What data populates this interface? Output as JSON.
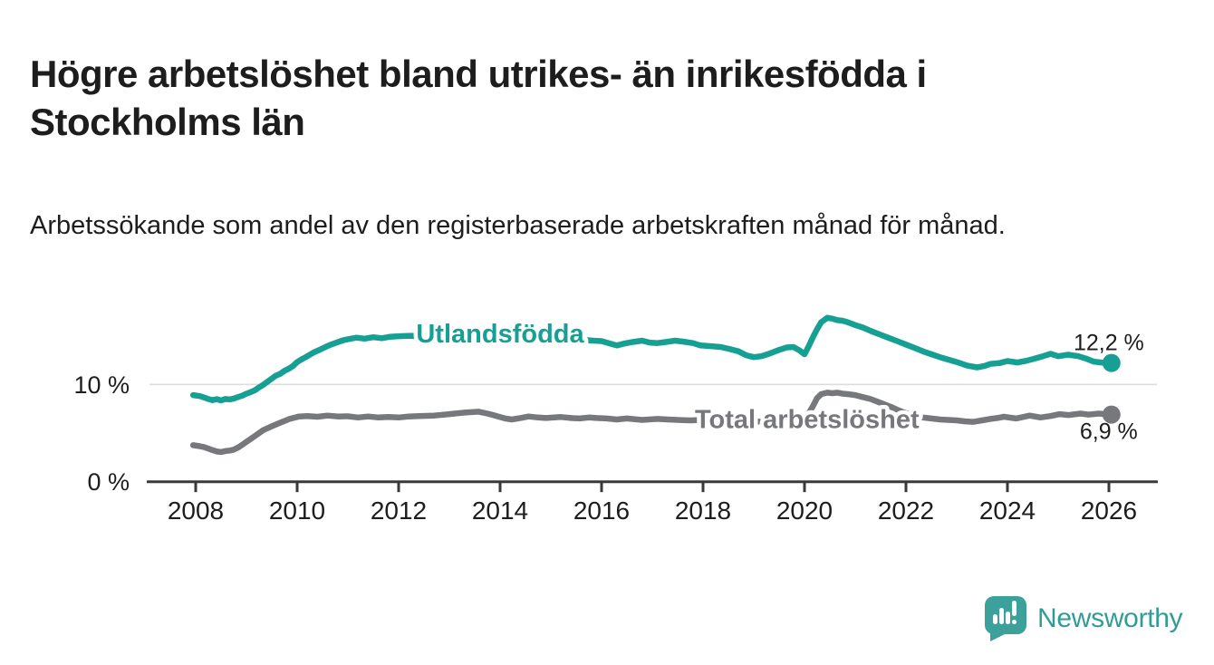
{
  "chart_data": {
    "type": "line",
    "title": "Högre arbetslöshet bland utrikes- än inrikesfödda i Stockholms län",
    "subtitle": "Arbetssökande som andel av den registerbaserade arbetskraften månad för månad.",
    "legend_position": "inline-labels-on-lines",
    "grid": "horizontal-10pct-only",
    "x_axis": {
      "tick_years": [
        2008,
        2010,
        2012,
        2014,
        2016,
        2018,
        2020,
        2022,
        2024,
        2026
      ],
      "range_years": [
        2007.0,
        2027.0
      ]
    },
    "y_axis": {
      "ticks": [
        {
          "value": 0,
          "label": "0 %"
        },
        {
          "value": 10,
          "label": "10 %"
        }
      ],
      "range": [
        0,
        19.5
      ]
    },
    "series": [
      {
        "name": "Utlandsfödda",
        "color": "#16a094",
        "inline_label": {
          "year": 2014.0,
          "value": 15.05
        },
        "end_label": "12,2 %",
        "latest_value": 12.2,
        "points": [
          [
            2007.95,
            8.9
          ],
          [
            2008.08,
            8.8
          ],
          [
            2008.17,
            8.65
          ],
          [
            2008.25,
            8.5
          ],
          [
            2008.33,
            8.38
          ],
          [
            2008.42,
            8.48
          ],
          [
            2008.5,
            8.35
          ],
          [
            2008.58,
            8.5
          ],
          [
            2008.67,
            8.45
          ],
          [
            2008.75,
            8.55
          ],
          [
            2008.83,
            8.7
          ],
          [
            2008.92,
            8.85
          ],
          [
            2009.0,
            9.05
          ],
          [
            2009.08,
            9.2
          ],
          [
            2009.17,
            9.4
          ],
          [
            2009.25,
            9.7
          ],
          [
            2009.33,
            9.95
          ],
          [
            2009.42,
            10.3
          ],
          [
            2009.5,
            10.6
          ],
          [
            2009.58,
            10.9
          ],
          [
            2009.67,
            11.1
          ],
          [
            2009.75,
            11.4
          ],
          [
            2009.83,
            11.6
          ],
          [
            2009.92,
            11.9
          ],
          [
            2010.0,
            12.3
          ],
          [
            2010.08,
            12.55
          ],
          [
            2010.17,
            12.8
          ],
          [
            2010.25,
            13.05
          ],
          [
            2010.33,
            13.3
          ],
          [
            2010.42,
            13.5
          ],
          [
            2010.5,
            13.7
          ],
          [
            2010.58,
            13.9
          ],
          [
            2010.67,
            14.1
          ],
          [
            2010.75,
            14.25
          ],
          [
            2010.83,
            14.4
          ],
          [
            2010.92,
            14.55
          ],
          [
            2011.0,
            14.65
          ],
          [
            2011.17,
            14.8
          ],
          [
            2011.33,
            14.7
          ],
          [
            2011.5,
            14.85
          ],
          [
            2011.67,
            14.75
          ],
          [
            2011.83,
            14.9
          ],
          [
            2012.0,
            14.95
          ],
          [
            2012.25,
            15.0
          ],
          [
            2012.5,
            14.9
          ],
          [
            2012.75,
            15.05
          ],
          [
            2013.0,
            15.0
          ],
          [
            2013.25,
            15.1
          ],
          [
            2013.5,
            15.05
          ],
          [
            2013.75,
            15.0
          ],
          [
            2014.0,
            14.9
          ],
          [
            2014.25,
            14.95
          ],
          [
            2014.5,
            14.8
          ],
          [
            2014.75,
            14.75
          ],
          [
            2015.0,
            14.7
          ],
          [
            2015.25,
            14.6
          ],
          [
            2015.5,
            14.65
          ],
          [
            2015.83,
            14.5
          ],
          [
            2016.0,
            14.45
          ],
          [
            2016.17,
            14.2
          ],
          [
            2016.3,
            14.0
          ],
          [
            2016.45,
            14.2
          ],
          [
            2016.6,
            14.35
          ],
          [
            2016.8,
            14.5
          ],
          [
            2016.95,
            14.3
          ],
          [
            2017.1,
            14.25
          ],
          [
            2017.25,
            14.35
          ],
          [
            2017.45,
            14.5
          ],
          [
            2017.6,
            14.4
          ],
          [
            2017.8,
            14.25
          ],
          [
            2017.95,
            14.0
          ],
          [
            2018.1,
            13.95
          ],
          [
            2018.35,
            13.85
          ],
          [
            2018.55,
            13.6
          ],
          [
            2018.7,
            13.4
          ],
          [
            2018.85,
            13.0
          ],
          [
            2019.0,
            12.8
          ],
          [
            2019.15,
            12.9
          ],
          [
            2019.3,
            13.15
          ],
          [
            2019.5,
            13.55
          ],
          [
            2019.65,
            13.8
          ],
          [
            2019.78,
            13.85
          ],
          [
            2019.9,
            13.5
          ],
          [
            2020.0,
            13.1
          ],
          [
            2020.08,
            13.9
          ],
          [
            2020.17,
            14.9
          ],
          [
            2020.25,
            15.7
          ],
          [
            2020.33,
            16.4
          ],
          [
            2020.45,
            16.85
          ],
          [
            2020.55,
            16.75
          ],
          [
            2020.65,
            16.6
          ],
          [
            2020.75,
            16.55
          ],
          [
            2020.85,
            16.4
          ],
          [
            2021.0,
            16.1
          ],
          [
            2021.15,
            15.85
          ],
          [
            2021.3,
            15.5
          ],
          [
            2021.5,
            15.1
          ],
          [
            2021.7,
            14.7
          ],
          [
            2021.85,
            14.4
          ],
          [
            2022.0,
            14.1
          ],
          [
            2022.17,
            13.75
          ],
          [
            2022.36,
            13.35
          ],
          [
            2022.5,
            13.1
          ],
          [
            2022.67,
            12.8
          ],
          [
            2022.83,
            12.55
          ],
          [
            2023.0,
            12.3
          ],
          [
            2023.2,
            11.95
          ],
          [
            2023.4,
            11.75
          ],
          [
            2023.55,
            11.9
          ],
          [
            2023.66,
            12.1
          ],
          [
            2023.85,
            12.2
          ],
          [
            2024.0,
            12.4
          ],
          [
            2024.2,
            12.25
          ],
          [
            2024.35,
            12.4
          ],
          [
            2024.5,
            12.6
          ],
          [
            2024.7,
            12.9
          ],
          [
            2024.85,
            13.15
          ],
          [
            2025.0,
            12.9
          ],
          [
            2025.2,
            13.05
          ],
          [
            2025.4,
            12.9
          ],
          [
            2025.55,
            12.65
          ],
          [
            2025.7,
            12.35
          ],
          [
            2025.85,
            12.25
          ],
          [
            2026.05,
            12.2
          ]
        ]
      },
      {
        "name": "Total arbetslöshet",
        "color": "#77787c",
        "inline_label": {
          "year": 2020.05,
          "value": 6.25
        },
        "end_label": "6,9 %",
        "latest_value": 6.9,
        "points": [
          [
            2007.95,
            3.75
          ],
          [
            2008.08,
            3.65
          ],
          [
            2008.17,
            3.55
          ],
          [
            2008.25,
            3.4
          ],
          [
            2008.33,
            3.25
          ],
          [
            2008.42,
            3.1
          ],
          [
            2008.5,
            3.05
          ],
          [
            2008.58,
            3.15
          ],
          [
            2008.67,
            3.2
          ],
          [
            2008.75,
            3.3
          ],
          [
            2008.83,
            3.5
          ],
          [
            2008.92,
            3.8
          ],
          [
            2009.0,
            4.1
          ],
          [
            2009.17,
            4.7
          ],
          [
            2009.33,
            5.3
          ],
          [
            2009.5,
            5.7
          ],
          [
            2009.68,
            6.1
          ],
          [
            2009.85,
            6.45
          ],
          [
            2010.04,
            6.7
          ],
          [
            2010.2,
            6.75
          ],
          [
            2010.4,
            6.68
          ],
          [
            2010.6,
            6.8
          ],
          [
            2010.8,
            6.7
          ],
          [
            2011.0,
            6.72
          ],
          [
            2011.2,
            6.6
          ],
          [
            2011.4,
            6.7
          ],
          [
            2011.6,
            6.6
          ],
          [
            2011.8,
            6.65
          ],
          [
            2012.0,
            6.6
          ],
          [
            2012.2,
            6.7
          ],
          [
            2012.4,
            6.75
          ],
          [
            2012.7,
            6.8
          ],
          [
            2013.0,
            6.95
          ],
          [
            2013.3,
            7.1
          ],
          [
            2013.58,
            7.2
          ],
          [
            2013.75,
            7.0
          ],
          [
            2013.9,
            6.8
          ],
          [
            2014.1,
            6.5
          ],
          [
            2014.23,
            6.4
          ],
          [
            2014.4,
            6.55
          ],
          [
            2014.56,
            6.7
          ],
          [
            2014.75,
            6.6
          ],
          [
            2014.9,
            6.55
          ],
          [
            2015.2,
            6.65
          ],
          [
            2015.4,
            6.55
          ],
          [
            2015.57,
            6.5
          ],
          [
            2015.75,
            6.6
          ],
          [
            2015.9,
            6.55
          ],
          [
            2016.1,
            6.5
          ],
          [
            2016.3,
            6.4
          ],
          [
            2016.5,
            6.5
          ],
          [
            2016.8,
            6.35
          ],
          [
            2017.1,
            6.45
          ],
          [
            2017.3,
            6.4
          ],
          [
            2017.5,
            6.35
          ],
          [
            2017.75,
            6.3
          ],
          [
            2018.0,
            6.35
          ],
          [
            2018.25,
            6.25
          ],
          [
            2018.5,
            6.2
          ],
          [
            2018.75,
            6.25
          ],
          [
            2019.0,
            6.2
          ],
          [
            2019.25,
            6.15
          ],
          [
            2019.5,
            6.1
          ],
          [
            2019.75,
            6.15
          ],
          [
            2019.9,
            6.25
          ],
          [
            2020.0,
            6.4
          ],
          [
            2020.08,
            7.0
          ],
          [
            2020.17,
            7.8
          ],
          [
            2020.25,
            8.6
          ],
          [
            2020.33,
            9.0
          ],
          [
            2020.45,
            9.15
          ],
          [
            2020.55,
            9.1
          ],
          [
            2020.65,
            9.15
          ],
          [
            2020.75,
            9.05
          ],
          [
            2020.85,
            9.0
          ],
          [
            2021.0,
            8.9
          ],
          [
            2021.15,
            8.7
          ],
          [
            2021.3,
            8.5
          ],
          [
            2021.5,
            8.1
          ],
          [
            2021.7,
            7.7
          ],
          [
            2021.85,
            7.35
          ],
          [
            2022.0,
            7.05
          ],
          [
            2022.17,
            6.8
          ],
          [
            2022.33,
            6.6
          ],
          [
            2022.5,
            6.5
          ],
          [
            2022.67,
            6.4
          ],
          [
            2022.83,
            6.35
          ],
          [
            2023.0,
            6.3
          ],
          [
            2023.17,
            6.2
          ],
          [
            2023.33,
            6.15
          ],
          [
            2023.5,
            6.3
          ],
          [
            2023.66,
            6.45
          ],
          [
            2023.8,
            6.55
          ],
          [
            2023.93,
            6.68
          ],
          [
            2024.17,
            6.5
          ],
          [
            2024.44,
            6.8
          ],
          [
            2024.65,
            6.6
          ],
          [
            2024.85,
            6.75
          ],
          [
            2025.03,
            6.95
          ],
          [
            2025.2,
            6.85
          ],
          [
            2025.44,
            7.0
          ],
          [
            2025.6,
            6.9
          ],
          [
            2025.8,
            7.0
          ],
          [
            2026.05,
            6.9
          ]
        ]
      }
    ]
  },
  "branding": {
    "wordmark": "Newsworthy",
    "icon": "newsworthy-speech-bubble-chart-icon",
    "icon_color": "#3da19b",
    "wordmark_color": "#2f9d95"
  }
}
